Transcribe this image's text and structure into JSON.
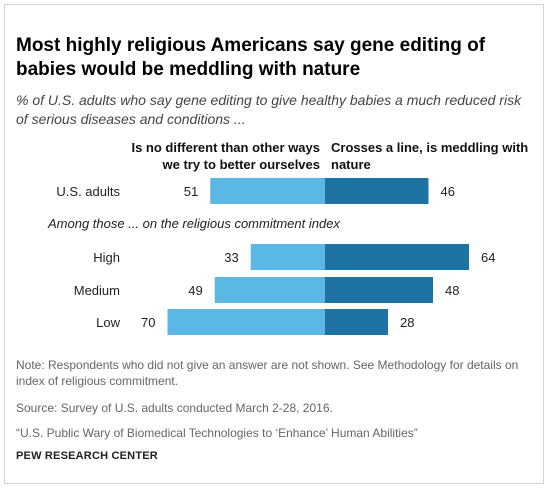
{
  "title": "Most highly religious Americans say gene editing of babies would be meddling with nature",
  "subtitle": "% of U.S. adults who say gene editing to give healthy babies a much reduced risk of serious diseases and conditions ...",
  "colors": {
    "left": "#5bb8e4",
    "right": "#1f73a3",
    "frame": "#d4d4d4"
  },
  "chart_data": {
    "type": "bar",
    "orientation": "horizontal-diverging",
    "series": [
      {
        "name": "Is no different than other ways we try to better ourselves",
        "values": [
          51,
          33,
          49,
          70
        ]
      },
      {
        "name": "Crosses a line, is meddling with nature",
        "values": [
          46,
          64,
          48,
          28
        ]
      }
    ],
    "categories": [
      "U.S. adults",
      "High",
      "Medium",
      "Low"
    ],
    "group_label": "Among those ... on the religious commitment index",
    "legend_placement": "top",
    "grid": false
  },
  "notes": {
    "note": "Note: Respondents who did not give an answer are not shown. See Methodology for details on index of religious commitment.",
    "source": "Source: Survey of U.S. adults conducted March 2-28, 2016.",
    "report": "“U.S. Public Wary of Biomedical Technologies to ‘Enhance’ Human Abilities”",
    "org": "PEW RESEARCH CENTER"
  }
}
